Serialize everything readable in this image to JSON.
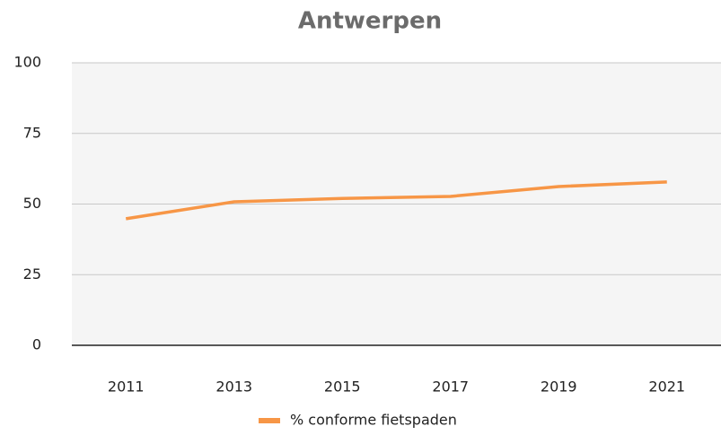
{
  "chart_data": {
    "type": "line",
    "title": "Antwerpen",
    "categories": [
      "2011",
      "2013",
      "2015",
      "2017",
      "2019",
      "2021"
    ],
    "series": [
      {
        "name": "% conforme fietspaden",
        "color": "#f79646",
        "values": [
          44.8,
          50.8,
          52,
          52.7,
          56.2,
          57.8
        ]
      }
    ],
    "ylim": [
      0,
      100
    ],
    "yticks": [
      0,
      25,
      50,
      75,
      100
    ],
    "grid": true,
    "legend": "bottom"
  }
}
